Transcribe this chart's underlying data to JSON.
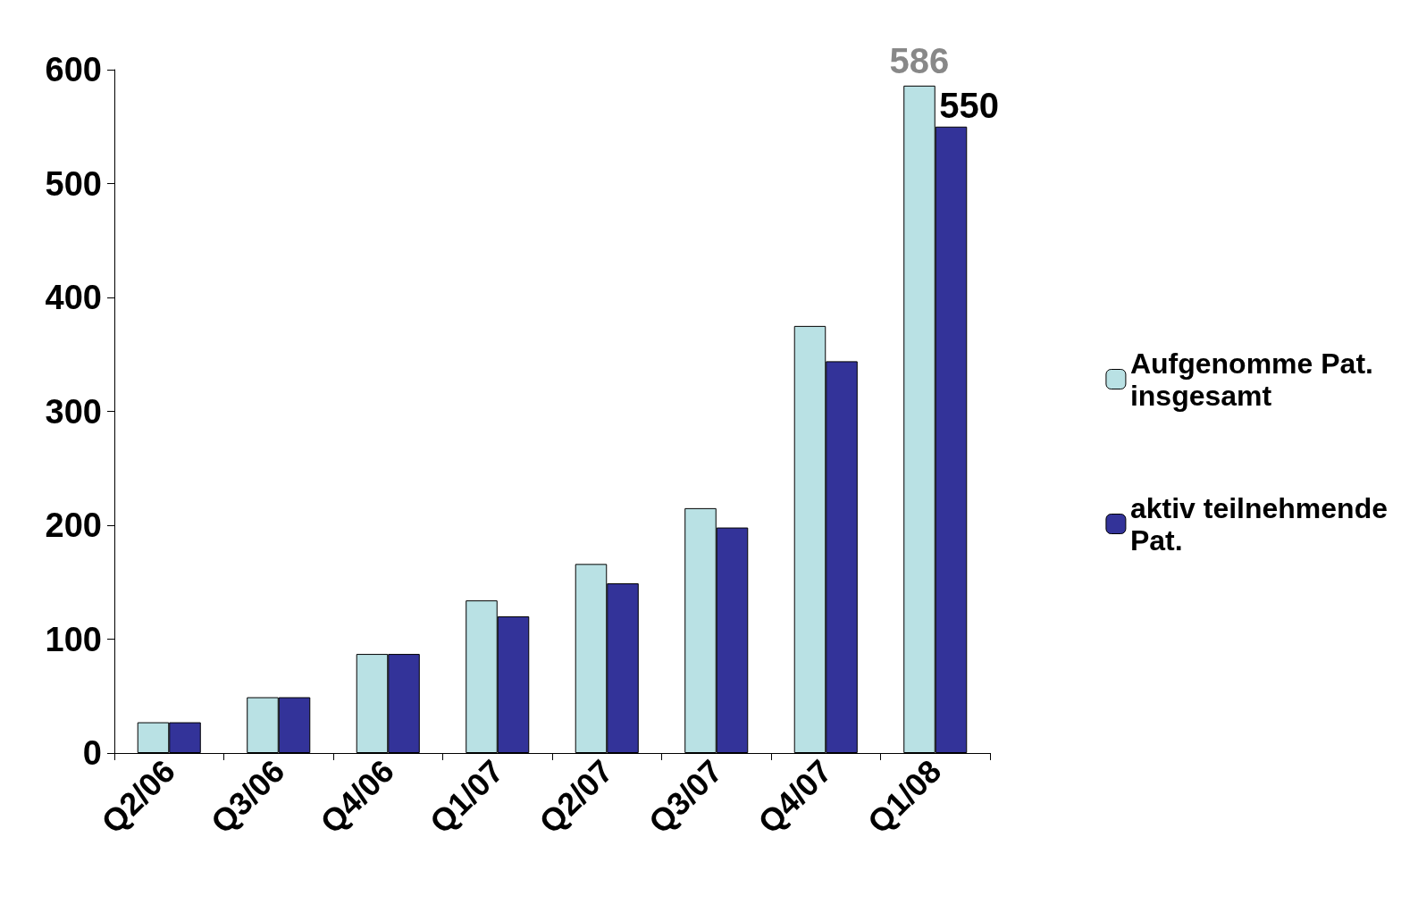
{
  "chart_data": {
    "type": "bar",
    "categories": [
      "Q2/06",
      "Q3/06",
      "Q4/06",
      "Q1/07",
      "Q2/07",
      "Q3/07",
      "Q4/07",
      "Q1/08"
    ],
    "series": [
      {
        "name": "Aufgenomme Pat.\ninsgesamt",
        "color": "#b9e1e4",
        "values": [
          27,
          49,
          87,
          134,
          166,
          215,
          375,
          586
        ],
        "value_labels": [
          null,
          null,
          null,
          null,
          null,
          null,
          null,
          "586"
        ]
      },
      {
        "name": "aktiv teilnehmende\nPat.",
        "color": "#333399",
        "values": [
          27,
          49,
          87,
          120,
          149,
          198,
          344,
          550
        ],
        "value_labels": [
          null,
          null,
          null,
          null,
          null,
          null,
          null,
          "550"
        ]
      }
    ],
    "ylim": [
      0,
      600
    ],
    "yticks": [
      0,
      100,
      200,
      300,
      400,
      500,
      600
    ],
    "grid": false,
    "legend": "right"
  }
}
